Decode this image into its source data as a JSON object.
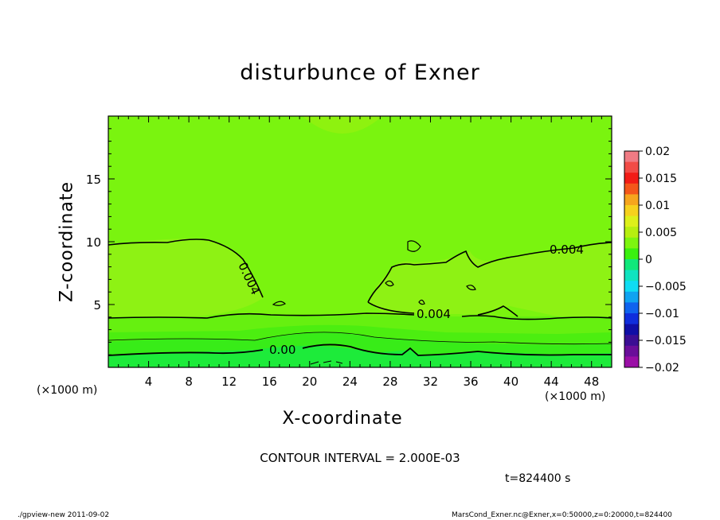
{
  "chart_data": {
    "type": "contour",
    "title": "disturbunce of Exner",
    "xlabel": "X-coordinate",
    "ylabel": "Z-coordinate",
    "x_unit": "(×1000 m)",
    "xlim": [
      0,
      50
    ],
    "ylim": [
      0,
      20
    ],
    "x_ticks": [
      "4",
      "8",
      "12",
      "16",
      "20",
      "24",
      "28",
      "32",
      "36",
      "40",
      "44",
      "48"
    ],
    "y_ticks": [
      "5",
      "10",
      "15"
    ],
    "contour_interval_text": "CONTOUR INTERVAL = 2.000E-03",
    "time_text": "t=824400 s",
    "contour_labels": [
      "0.004",
      "0.004",
      "0.004",
      "0.00"
    ],
    "colorbar": {
      "labels": [
        "0.02",
        "0.015",
        "0.01",
        "0.005",
        "0",
        "−0.005",
        "−0.01",
        "−0.015",
        "−0.02"
      ],
      "colors": [
        "#f07b84",
        "#f24b46",
        "#f21c16",
        "#f4571a",
        "#f6a51d",
        "#f6d11d",
        "#ddf01a",
        "#b6ef10",
        "#7df50f",
        "#3af00f",
        "#10e87b",
        "#0fe3c0",
        "#0fdcf3",
        "#0fa3f1",
        "#0f63ee",
        "#0f2ddc",
        "#0f0ea6",
        "#3b0e94",
        "#6a0e9a",
        "#9a0fa6"
      ]
    },
    "footer_left": "./gpview-new   2011-09-02",
    "footer_right": "MarsCond_Exner.nc@Exner,x=0:50000,z=0:20000,t=824400"
  }
}
